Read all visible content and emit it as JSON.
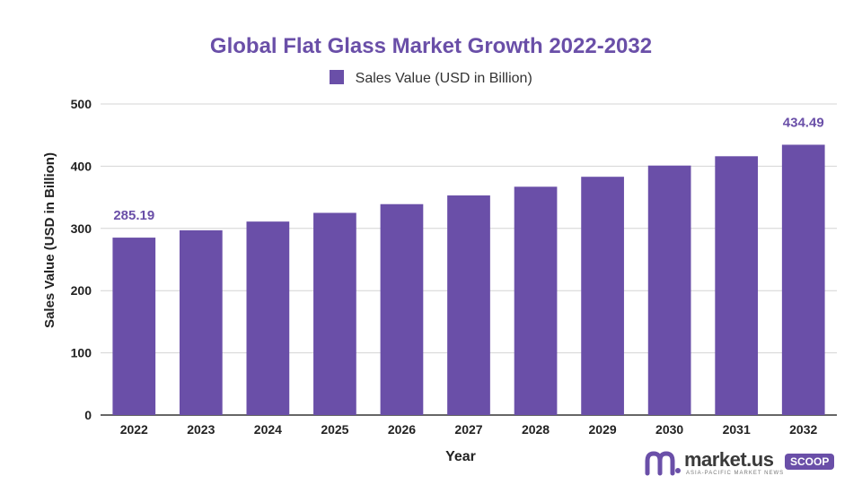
{
  "chart_data": {
    "type": "bar",
    "title": "Global Flat Glass Market Growth 2022-2032",
    "xlabel": "Year",
    "ylabel": "Sales Value (USD in Billion)",
    "ylim": [
      0,
      500
    ],
    "yticks": [
      0,
      100,
      200,
      300,
      400,
      500
    ],
    "grid": true,
    "legend_position": "top-center",
    "categories": [
      "2022",
      "2023",
      "2024",
      "2025",
      "2026",
      "2027",
      "2028",
      "2029",
      "2030",
      "2031",
      "2032"
    ],
    "series": [
      {
        "name": "Sales Value (USD in Billion)",
        "color": "#6a4fa8",
        "values": [
          285.19,
          297,
          311,
          325,
          339,
          353,
          367,
          383,
          401,
          416,
          434.49
        ]
      }
    ],
    "data_labels": [
      {
        "category": "2022",
        "text": "285.19"
      },
      {
        "category": "2032",
        "text": "434.49"
      }
    ]
  },
  "watermark": {
    "name": "market.us",
    "tagline": "ASIA-PACIFIC MARKET NEWS",
    "badge": "SCOOP",
    "logo_icon": "market-us-logo-icon"
  }
}
